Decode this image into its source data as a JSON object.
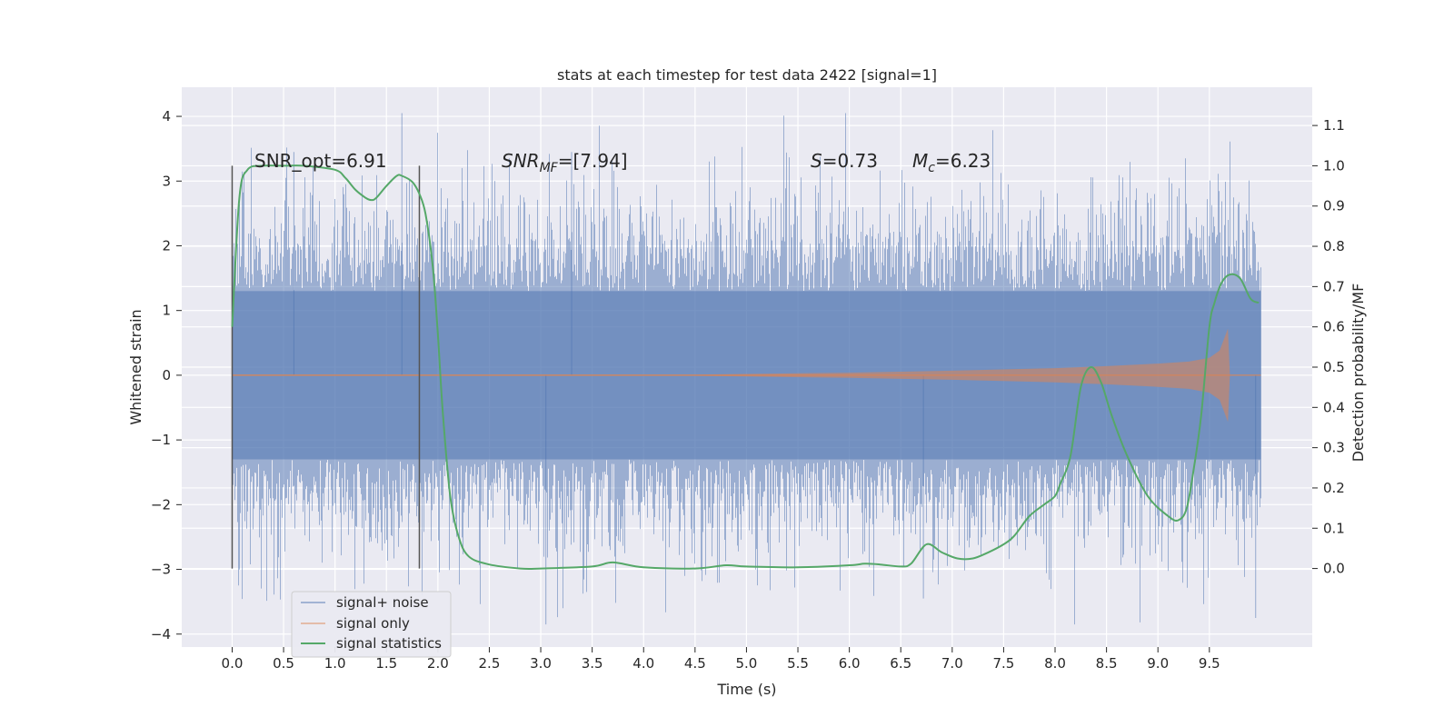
{
  "chart_data": {
    "type": "line",
    "title": "stats at each timestep for test data 2422 [signal=1]",
    "xlabel": "Time (s)",
    "ylabel_left": "Whitened strain",
    "ylabel_right": "Detection probability/MF",
    "xlim": [
      -0.49,
      10.5
    ],
    "ylim_left": [
      -4.2,
      4.45
    ],
    "ylim_right": [
      -0.195,
      1.195
    ],
    "x_ticks": [
      "0.0",
      "0.5",
      "1.0",
      "1.5",
      "2.0",
      "2.5",
      "3.0",
      "3.5",
      "4.0",
      "4.5",
      "5.0",
      "5.5",
      "6.0",
      "6.5",
      "7.0",
      "7.5",
      "8.0",
      "8.5",
      "9.0",
      "9.5"
    ],
    "y_left_ticks": [
      "−4",
      "−3",
      "−2",
      "−1",
      "0",
      "1",
      "2",
      "3",
      "4"
    ],
    "y_right_ticks": [
      "0.0",
      "0.1",
      "0.2",
      "0.3",
      "0.4",
      "0.5",
      "0.6",
      "0.7",
      "0.8",
      "0.9",
      "1.0",
      "1.1"
    ],
    "grid": true,
    "legend_position": "lower-left",
    "annotations": {
      "snr_opt": "SNR_opt=6.91",
      "snr_mf_base": "SNR",
      "snr_mf_sub": "MF",
      "snr_mf_value": "=[7.94]",
      "s_symbol": "S",
      "s_value": "=0.73",
      "mc_symbol": "M",
      "mc_sub": "c",
      "mc_value": "=6.23"
    },
    "vlines_x": [
      0.0,
      1.82
    ],
    "series": [
      {
        "name": "signal+ noise",
        "axis": "left",
        "color": "#4c72b0",
        "x_range": [
          0.0,
          10.0
        ],
        "typical_amplitude": 1.3,
        "peak_range": [
          -3.85,
          4.05
        ]
      },
      {
        "name": "signal only",
        "axis": "left",
        "color": "#dd8452",
        "x": [
          0.0,
          4.5,
          5.0,
          6.0,
          7.0,
          8.0,
          8.5,
          9.0,
          9.3,
          9.5,
          9.6,
          9.68,
          9.7,
          10.0
        ],
        "envelope": [
          0.01,
          0.01,
          0.02,
          0.04,
          0.07,
          0.11,
          0.14,
          0.18,
          0.21,
          0.27,
          0.38,
          0.72,
          0.0,
          0.0
        ]
      },
      {
        "name": "signal statistics",
        "axis": "right",
        "color": "#55a868",
        "x": [
          0.0,
          0.07,
          0.15,
          0.3,
          0.5,
          0.7,
          1.0,
          1.1,
          1.2,
          1.3,
          1.35,
          1.4,
          1.5,
          1.6,
          1.65,
          1.75,
          1.82,
          1.88,
          1.95,
          2.0,
          2.05,
          2.12,
          2.2,
          2.3,
          2.5,
          2.8,
          3.0,
          3.5,
          3.7,
          4.0,
          4.5,
          4.8,
          5.0,
          5.5,
          6.0,
          6.15,
          6.3,
          6.5,
          6.6,
          6.75,
          6.9,
          7.05,
          7.2,
          7.35,
          7.5,
          7.6,
          7.75,
          7.9,
          8.0,
          8.05,
          8.15,
          8.25,
          8.35,
          8.45,
          8.55,
          8.7,
          8.9,
          9.1,
          9.2,
          9.28,
          9.35,
          9.42,
          9.5,
          9.55,
          9.62,
          9.7,
          9.8,
          9.9,
          9.98
        ],
        "y": [
          0.6,
          0.92,
          0.99,
          1.0,
          1.0,
          1.0,
          0.99,
          0.97,
          0.94,
          0.92,
          0.915,
          0.92,
          0.95,
          0.975,
          0.975,
          0.96,
          0.93,
          0.88,
          0.75,
          0.58,
          0.38,
          0.18,
          0.08,
          0.03,
          0.01,
          0.0,
          0.0,
          0.005,
          0.015,
          0.003,
          0.0,
          0.008,
          0.005,
          0.003,
          0.008,
          0.012,
          0.01,
          0.005,
          0.012,
          0.06,
          0.04,
          0.025,
          0.025,
          0.04,
          0.06,
          0.08,
          0.13,
          0.16,
          0.18,
          0.21,
          0.28,
          0.45,
          0.5,
          0.46,
          0.38,
          0.28,
          0.18,
          0.13,
          0.12,
          0.15,
          0.25,
          0.38,
          0.6,
          0.66,
          0.71,
          0.73,
          0.72,
          0.67,
          0.66
        ]
      }
    ]
  }
}
